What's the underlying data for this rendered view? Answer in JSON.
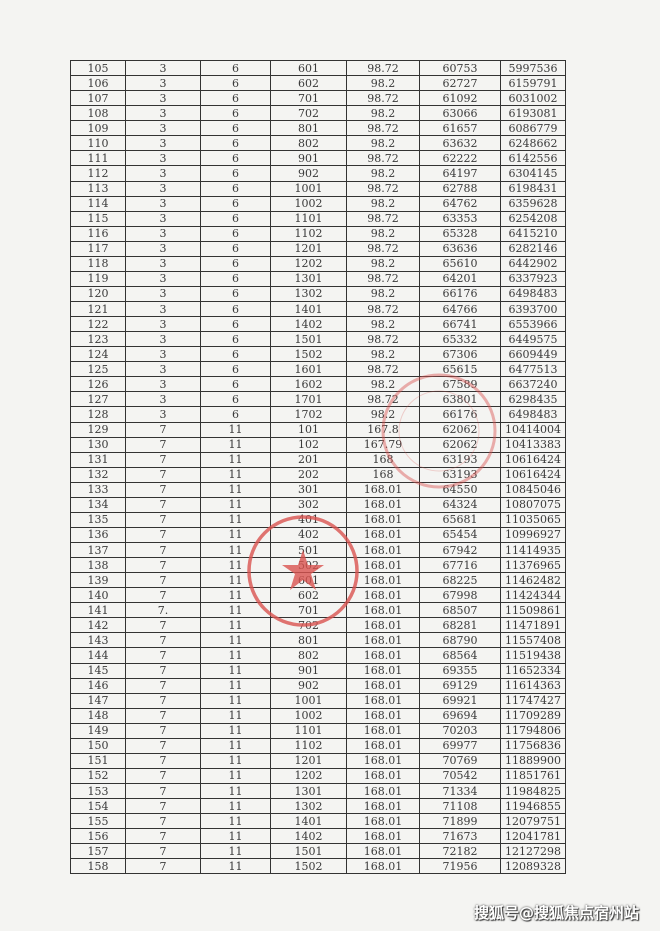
{
  "table": {
    "rows": [
      [
        "105",
        "3",
        "6",
        "601",
        "98.72",
        "60753",
        "5997536"
      ],
      [
        "106",
        "3",
        "6",
        "602",
        "98.2",
        "62727",
        "6159791"
      ],
      [
        "107",
        "3",
        "6",
        "701",
        "98.72",
        "61092",
        "6031002"
      ],
      [
        "108",
        "3",
        "6",
        "702",
        "98.2",
        "63066",
        "6193081"
      ],
      [
        "109",
        "3",
        "6",
        "801",
        "98.72",
        "61657",
        "6086779"
      ],
      [
        "110",
        "3",
        "6",
        "802",
        "98.2",
        "63632",
        "6248662"
      ],
      [
        "111",
        "3",
        "6",
        "901",
        "98.72",
        "62222",
        "6142556"
      ],
      [
        "112",
        "3",
        "6",
        "902",
        "98.2",
        "64197",
        "6304145"
      ],
      [
        "113",
        "3",
        "6",
        "1001",
        "98.72",
        "62788",
        "6198431"
      ],
      [
        "114",
        "3",
        "6",
        "1002",
        "98.2",
        "64762",
        "6359628"
      ],
      [
        "115",
        "3",
        "6",
        "1101",
        "98.72",
        "63353",
        "6254208"
      ],
      [
        "116",
        "3",
        "6",
        "1102",
        "98.2",
        "65328",
        "6415210"
      ],
      [
        "117",
        "3",
        "6",
        "1201",
        "98.72",
        "63636",
        "6282146"
      ],
      [
        "118",
        "3",
        "6",
        "1202",
        "98.2",
        "65610",
        "6442902"
      ],
      [
        "119",
        "3",
        "6",
        "1301",
        "98.72",
        "64201",
        "6337923"
      ],
      [
        "120",
        "3",
        "6",
        "1302",
        "98.2",
        "66176",
        "6498483"
      ],
      [
        "121",
        "3",
        "6",
        "1401",
        "98.72",
        "64766",
        "6393700"
      ],
      [
        "122",
        "3",
        "6",
        "1402",
        "98.2",
        "66741",
        "6553966"
      ],
      [
        "123",
        "3",
        "6",
        "1501",
        "98.72",
        "65332",
        "6449575"
      ],
      [
        "124",
        "3",
        "6",
        "1502",
        "98.2",
        "67306",
        "6609449"
      ],
      [
        "125",
        "3",
        "6",
        "1601",
        "98.72",
        "65615",
        "6477513"
      ],
      [
        "126",
        "3",
        "6",
        "1602",
        "98.2",
        "67589",
        "6637240"
      ],
      [
        "127",
        "3",
        "6",
        "1701",
        "98.72",
        "63801",
        "6298435"
      ],
      [
        "128",
        "3",
        "6",
        "1702",
        "98.2",
        "66176",
        "6498483"
      ],
      [
        "129",
        "7",
        "11",
        "101",
        "167.8",
        "62062",
        "10414004"
      ],
      [
        "130",
        "7",
        "11",
        "102",
        "167.79",
        "62062",
        "10413383"
      ],
      [
        "131",
        "7",
        "11",
        "201",
        "168",
        "63193",
        "10616424"
      ],
      [
        "132",
        "7",
        "11",
        "202",
        "168",
        "63193",
        "10616424"
      ],
      [
        "133",
        "7",
        "11",
        "301",
        "168.01",
        "64550",
        "10845046"
      ],
      [
        "134",
        "7",
        "11",
        "302",
        "168.01",
        "64324",
        "10807075"
      ],
      [
        "135",
        "7",
        "11",
        "401",
        "168.01",
        "65681",
        "11035065"
      ],
      [
        "136",
        "7",
        "11",
        "402",
        "168.01",
        "65454",
        "10996927"
      ],
      [
        "137",
        "7",
        "11",
        "501",
        "168.01",
        "67942",
        "11414935"
      ],
      [
        "138",
        "7",
        "11",
        "502",
        "168.01",
        "67716",
        "11376965"
      ],
      [
        "139",
        "7",
        "11",
        "601",
        "168.01",
        "68225",
        "11462482"
      ],
      [
        "140",
        "7",
        "11",
        "602",
        "168.01",
        "67998",
        "11424344"
      ],
      [
        "141",
        "7.",
        "11",
        "701",
        "168.01",
        "68507",
        "11509861"
      ],
      [
        "142",
        "7",
        "11",
        "702",
        "168.01",
        "68281",
        "11471891"
      ],
      [
        "143",
        "7",
        "11",
        "801",
        "168.01",
        "68790",
        "11557408"
      ],
      [
        "144",
        "7",
        "11",
        "802",
        "168.01",
        "68564",
        "11519438"
      ],
      [
        "145",
        "7",
        "11",
        "901",
        "168.01",
        "69355",
        "11652334"
      ],
      [
        "146",
        "7",
        "11",
        "902",
        "168.01",
        "69129",
        "11614363"
      ],
      [
        "147",
        "7",
        "11",
        "1001",
        "168.01",
        "69921",
        "11747427"
      ],
      [
        "148",
        "7",
        "11",
        "1002",
        "168.01",
        "69694",
        "11709289"
      ],
      [
        "149",
        "7",
        "11",
        "1101",
        "168.01",
        "70203",
        "11794806"
      ],
      [
        "150",
        "7",
        "11",
        "1102",
        "168.01",
        "69977",
        "11756836"
      ],
      [
        "151",
        "7",
        "11",
        "1201",
        "168.01",
        "70769",
        "11889900"
      ],
      [
        "152",
        "7",
        "11",
        "1202",
        "168.01",
        "70542",
        "11851761"
      ],
      [
        "153",
        "7",
        "11",
        "1301",
        "168.01",
        "71334",
        "11984825"
      ],
      [
        "154",
        "7",
        "11",
        "1302",
        "168.01",
        "71108",
        "11946855"
      ],
      [
        "155",
        "7",
        "11",
        "1401",
        "168.01",
        "71899",
        "12079751"
      ],
      [
        "156",
        "7",
        "11",
        "1402",
        "168.01",
        "71673",
        "12041781"
      ],
      [
        "157",
        "7",
        "11",
        "1501",
        "168.01",
        "72182",
        "12127298"
      ],
      [
        "158",
        "7",
        "11",
        "1502",
        "168.01",
        "71956",
        "12089328"
      ]
    ]
  },
  "stamp_color": "#d9534f",
  "watermark": "搜狐号@搜狐焦点宿州站"
}
